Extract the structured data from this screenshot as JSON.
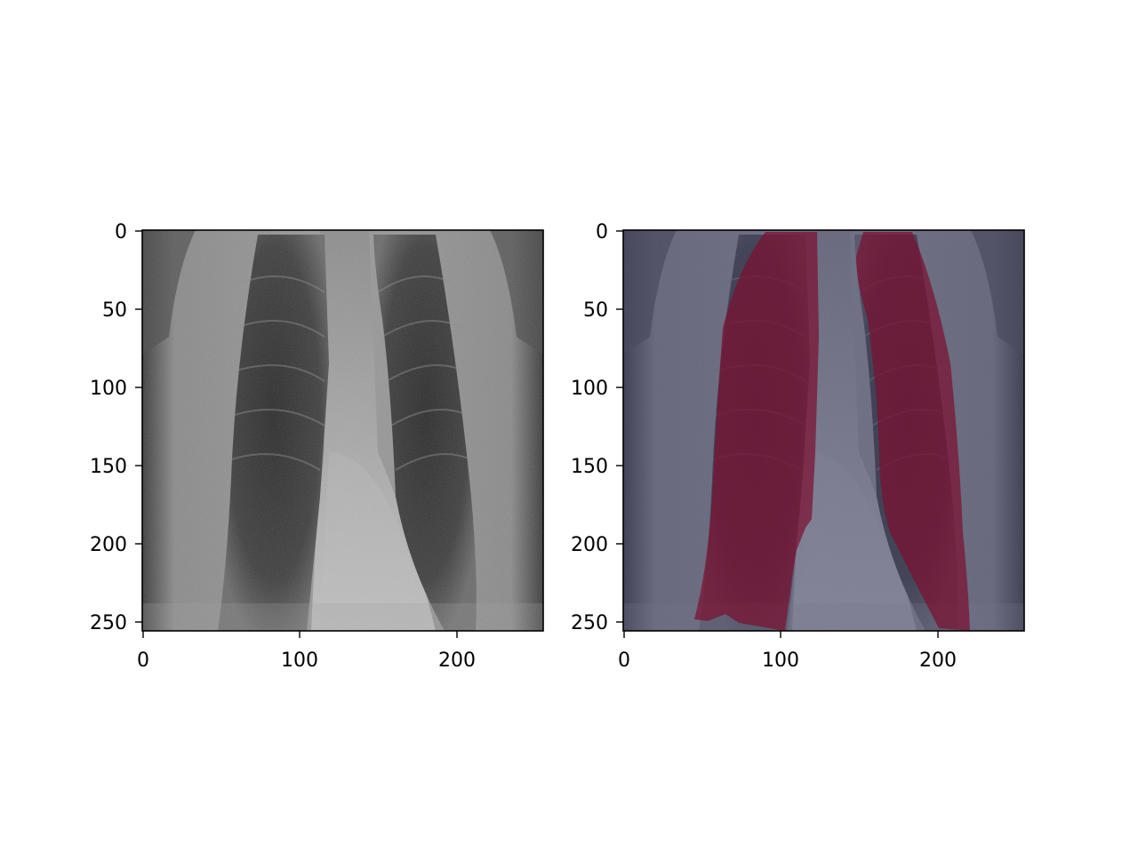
{
  "figure": {
    "panels": [
      {
        "name": "original-xray",
        "image": "grayscale chest x-ray",
        "x_ticks": [
          "0",
          "100",
          "200"
        ],
        "y_ticks": [
          "0",
          "50",
          "100",
          "150",
          "200",
          "250"
        ],
        "x_range": [
          0,
          255
        ],
        "y_range": [
          0,
          255
        ]
      },
      {
        "name": "segmentation-overlay",
        "image": "chest x-ray with lung segmentation overlay",
        "x_ticks": [
          "0",
          "100",
          "200"
        ],
        "y_ticks": [
          "0",
          "50",
          "100",
          "150",
          "200",
          "250"
        ],
        "x_range": [
          0,
          255
        ],
        "y_range": [
          0,
          255
        ]
      }
    ],
    "colors": {
      "background_overlay": "#3c3f6a",
      "mask_overlay": "#7a1030",
      "axes": "#000000"
    }
  }
}
